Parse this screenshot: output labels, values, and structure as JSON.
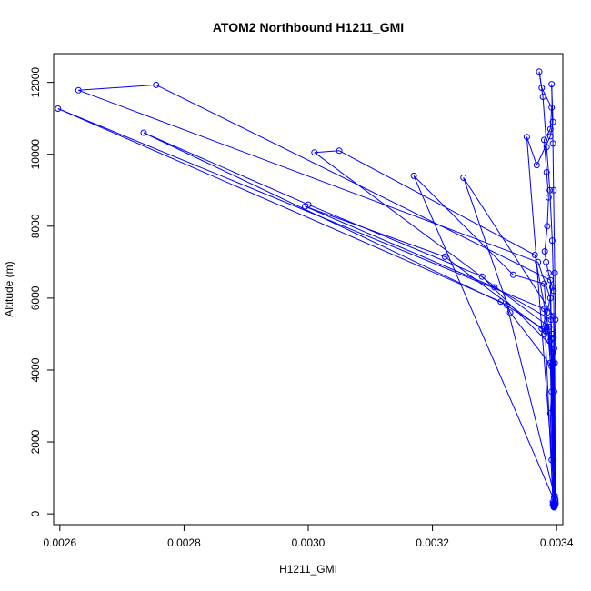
{
  "chart_data": {
    "type": "scatter",
    "title": "ATOM2 Northbound H1211_GMI",
    "xlabel": "H1211_GMI",
    "ylabel": "Altitude (m)",
    "xlim": [
      0.00259,
      0.00341
    ],
    "ylim": [
      -300,
      12800
    ],
    "x_ticks": [
      0.0026,
      0.0028,
      0.003,
      0.0032,
      0.0034
    ],
    "x_tick_labels": [
      "0.0026",
      "0.0028",
      "0.0030",
      "0.0032",
      "0.0034"
    ],
    "y_ticks": [
      0,
      2000,
      4000,
      6000,
      8000,
      10000,
      12000
    ],
    "y_tick_labels": [
      "0",
      "2000",
      "4000",
      "6000",
      "8000",
      "10000",
      "12000"
    ],
    "grid": false,
    "legend": "none",
    "series_color": "#0000ff",
    "marker": "open-circle",
    "connect_points": true,
    "points": [
      [
        0.003395,
        200
      ],
      [
        0.003395,
        300
      ],
      [
        0.003397,
        500
      ],
      [
        0.003392,
        1500
      ],
      [
        0.00339,
        2800
      ],
      [
        0.003392,
        3400
      ],
      [
        0.003394,
        4200
      ],
      [
        0.003389,
        4800
      ],
      [
        0.003384,
        5200
      ],
      [
        0.00338,
        5000
      ],
      [
        0.003376,
        5150
      ],
      [
        0.003385,
        5600
      ],
      [
        0.003393,
        6300
      ],
      [
        0.003387,
        6700
      ],
      [
        0.003383,
        7000
      ],
      [
        0.003381,
        7300
      ],
      [
        0.003385,
        8000
      ],
      [
        0.003387,
        8800
      ],
      [
        0.003384,
        9500
      ],
      [
        0.00338,
        10400
      ],
      [
        0.00339,
        10700
      ],
      [
        0.003392,
        11300
      ],
      [
        0.003376,
        11850
      ],
      [
        0.003372,
        12300
      ],
      [
        0.003378,
        11600
      ],
      [
        0.003384,
        10200
      ],
      [
        0.003389,
        9000
      ],
      [
        0.003393,
        7600
      ],
      [
        0.003395,
        6200
      ],
      [
        0.003397,
        4200
      ],
      [
        0.003398,
        300
      ],
      [
        0.003395,
        250
      ],
      [
        0.00339,
        4200
      ],
      [
        0.00338,
        6400
      ],
      [
        0.00333,
        6650
      ],
      [
        0.00317,
        9400
      ],
      [
        0.003398,
        300
      ],
      [
        0.003395,
        220
      ],
      [
        0.003394,
        4500
      ],
      [
        0.003365,
        7200
      ],
      [
        0.00305,
        10100
      ],
      [
        0.00301,
        10050
      ],
      [
        0.003388,
        5200
      ],
      [
        0.003398,
        350
      ],
      [
        0.003396,
        230
      ],
      [
        0.003396,
        4600
      ],
      [
        0.00328,
        6600
      ],
      [
        0.003,
        8600
      ],
      [
        0.002735,
        10600
      ],
      [
        0.00332,
        5800
      ],
      [
        0.003398,
        400
      ],
      [
        0.003397,
        240
      ],
      [
        0.003392,
        5000
      ],
      [
        0.00331,
        5900
      ],
      [
        0.002597,
        11270
      ],
      [
        0.00338,
        5700
      ],
      [
        0.003394,
        330
      ],
      [
        0.003394,
        260
      ],
      [
        0.003391,
        5400
      ],
      [
        0.0033,
        6300
      ],
      [
        0.002995,
        8550
      ],
      [
        0.00322,
        7150
      ],
      [
        0.003395,
        4900
      ],
      [
        0.003396,
        450
      ],
      [
        0.003396,
        270
      ],
      [
        0.00339,
        6000
      ],
      [
        0.00337,
        7000
      ],
      [
        0.00263,
        11780
      ],
      [
        0.002755,
        11930
      ],
      [
        0.00339,
        6500
      ],
      [
        0.003397,
        500
      ],
      [
        0.003398,
        280
      ],
      [
        0.003395,
        5500
      ],
      [
        0.00325,
        9350
      ],
      [
        0.003325,
        5600
      ],
      [
        0.003392,
        4100
      ],
      [
        0.003396,
        180
      ],
      [
        0.003398,
        290
      ],
      [
        0.003352,
        10480
      ],
      [
        0.003368,
        9700
      ],
      [
        0.00339,
        10500
      ],
      [
        0.003394,
        10900
      ],
      [
        0.003392,
        11950
      ],
      [
        0.003394,
        10300
      ],
      [
        0.003395,
        9000
      ],
      [
        0.003397,
        6700
      ],
      [
        0.003398,
        5400
      ],
      [
        0.003396,
        3400
      ],
      [
        0.003397,
        210
      ]
    ]
  }
}
